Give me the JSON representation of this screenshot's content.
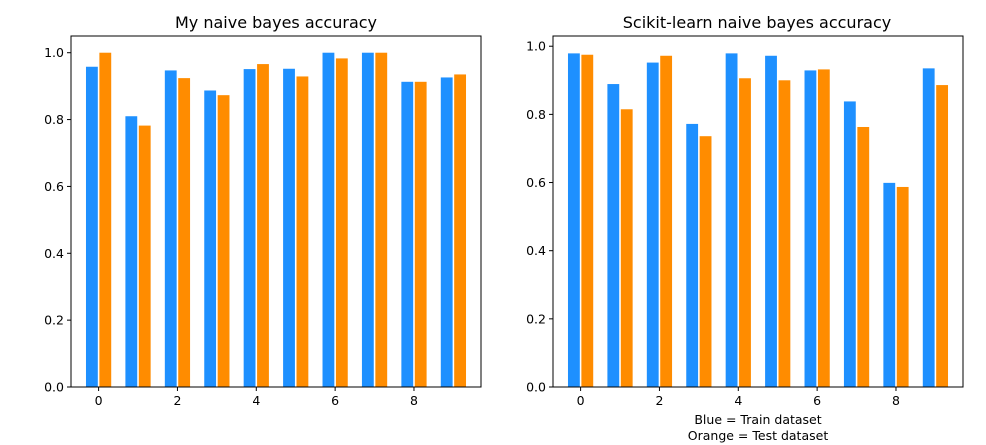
{
  "colors": {
    "train": "#1e90ff",
    "test": "#ff8c00",
    "axis": "#000000",
    "background": "#ffffff"
  },
  "caption": {
    "line1": "Blue = Train dataset",
    "line2": "Orange = Test dataset"
  },
  "chart_data": [
    {
      "type": "bar",
      "title": "My naive bayes accuracy",
      "xlabel": "",
      "ylabel": "",
      "categories": [
        0,
        1,
        2,
        3,
        4,
        5,
        6,
        7,
        8,
        9
      ],
      "series": [
        {
          "color": "#1e90ff",
          "values": [
            0.958,
            0.81,
            0.947,
            0.887,
            0.951,
            0.952,
            1.0,
            1.0,
            0.913,
            0.926
          ]
        },
        {
          "color": "#ff8c00",
          "values": [
            1.0,
            0.782,
            0.924,
            0.873,
            0.966,
            0.929,
            0.983,
            1.0,
            0.913,
            0.935
          ]
        }
      ],
      "xticks": [
        "0",
        "2",
        "4",
        "6",
        "8"
      ],
      "yticks": [
        "0.0",
        "0.2",
        "0.4",
        "0.6",
        "0.8",
        "1.0"
      ],
      "ylim": [
        0,
        1.05
      ],
      "xlim": [
        -0.7,
        9.7
      ],
      "grid": false,
      "legend": "none"
    },
    {
      "type": "bar",
      "title": "Scikit-learn naive bayes accuracy",
      "xlabel": "",
      "ylabel": "",
      "categories": [
        0,
        1,
        2,
        3,
        4,
        5,
        6,
        7,
        8,
        9
      ],
      "series": [
        {
          "color": "#1e90ff",
          "values": [
            0.979,
            0.889,
            0.952,
            0.772,
            0.979,
            0.972,
            0.929,
            0.838,
            0.599,
            0.935
          ]
        },
        {
          "color": "#ff8c00",
          "values": [
            0.975,
            0.815,
            0.972,
            0.736,
            0.906,
            0.9,
            0.932,
            0.763,
            0.587,
            0.886
          ]
        }
      ],
      "xticks": [
        "0",
        "2",
        "4",
        "6",
        "8"
      ],
      "yticks": [
        "0.0",
        "0.2",
        "0.4",
        "0.6",
        "0.8",
        "1.0"
      ],
      "ylim": [
        0,
        1.03
      ],
      "xlim": [
        -0.7,
        9.7
      ],
      "grid": false,
      "legend": "none"
    }
  ]
}
